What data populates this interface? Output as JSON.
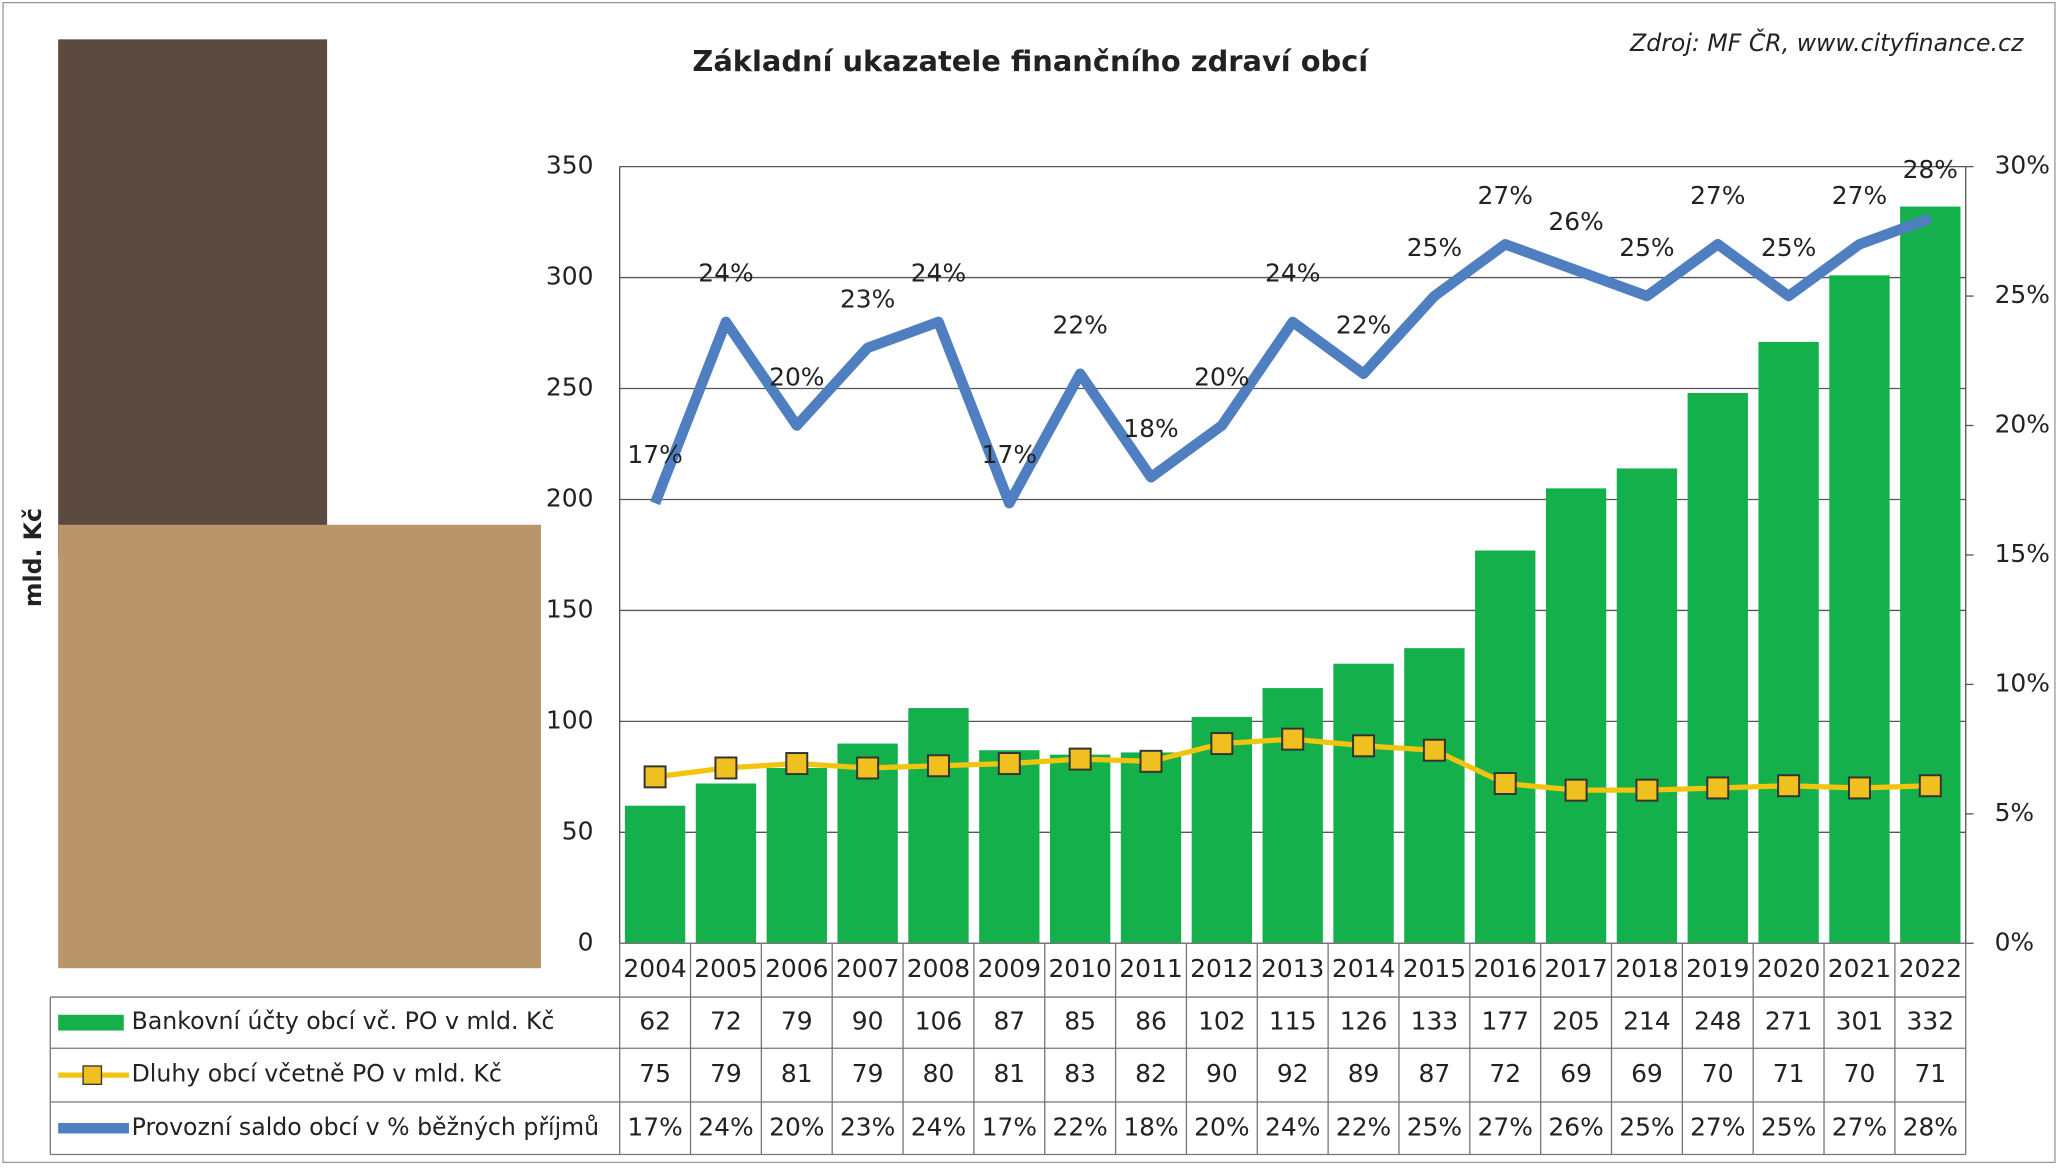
{
  "chart_data": {
    "type": "combo",
    "title": "Základní ukazatele finančního zdraví obcí",
    "source": "Zdroj: MF ČR, www.cityfinance.cz",
    "ylabel": "mld. Kč",
    "categories": [
      "2004",
      "2005",
      "2006",
      "2007",
      "2008",
      "2009",
      "2010",
      "2011",
      "2012",
      "2013",
      "2014",
      "2015",
      "2016",
      "2017",
      "2018",
      "2019",
      "2020",
      "2021",
      "2022"
    ],
    "ylim": [
      0,
      350
    ],
    "yticks": [
      0,
      50,
      100,
      150,
      200,
      250,
      300,
      350
    ],
    "y2lim": [
      0,
      30
    ],
    "y2ticks": [
      {
        "value": 0,
        "label": "0%"
      },
      {
        "value": 5,
        "label": "5%"
      },
      {
        "value": 10,
        "label": "10%"
      },
      {
        "value": 15,
        "label": "15%"
      },
      {
        "value": 20,
        "label": "20%"
      },
      {
        "value": 25,
        "label": "25%"
      },
      {
        "value": 30,
        "label": "30%"
      }
    ],
    "grid": true,
    "series": [
      {
        "name": "Bankovní účty obcí vč. PO v mld. Kč",
        "type": "bar",
        "color": "#13b04b",
        "values": [
          62,
          72,
          79,
          90,
          106,
          87,
          85,
          86,
          102,
          115,
          126,
          133,
          177,
          205,
          214,
          248,
          271,
          301,
          332
        ]
      },
      {
        "name": "Dluhy obcí včetně PO v mld. Kč",
        "type": "line",
        "color": "#f2c40f",
        "values": [
          75,
          79,
          81,
          79,
          80,
          81,
          83,
          82,
          90,
          92,
          89,
          87,
          72,
          69,
          69,
          70,
          71,
          70,
          71
        ]
      },
      {
        "name": "Provozní saldo obcí v % běžných příjmů",
        "type": "line",
        "color": "#4f7ec1",
        "axis": "y2",
        "values": [
          17,
          24,
          20,
          23,
          24,
          17,
          22,
          18,
          20,
          24,
          22,
          25,
          27,
          26,
          25,
          27,
          25,
          27,
          28
        ],
        "value_labels": [
          "17%",
          "24%",
          "20%",
          "23%",
          "24%",
          "17%",
          "22%",
          "18%",
          "20%",
          "24%",
          "22%",
          "25%",
          "27%",
          "26%",
          "25%",
          "27%",
          "25%",
          "27%",
          "28%"
        ]
      }
    ]
  }
}
